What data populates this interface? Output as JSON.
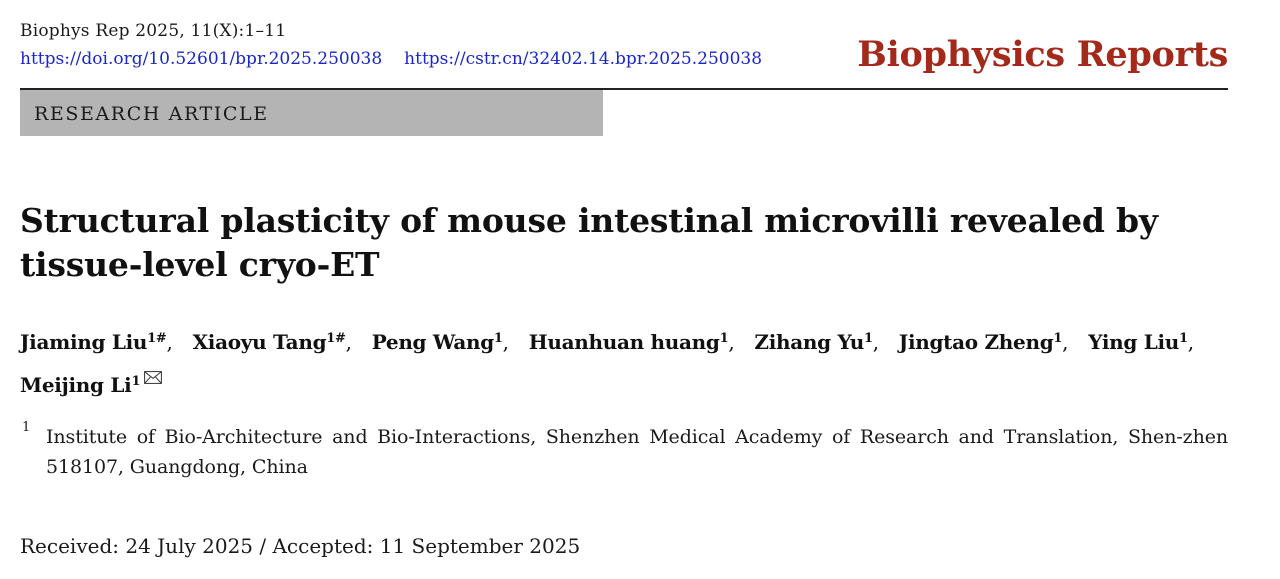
{
  "header": {
    "citation": "Biophys Rep 2025, 11(X):1–11",
    "doi_link": "https://doi.org/10.52601/bpr.2025.250038",
    "cstr_link": "https://cstr.cn/32402.14.bpr.2025.250038",
    "journal_name": "Biophysics Reports"
  },
  "article_type": "RESEARCH ARTICLE",
  "title": "Structural plasticity of mouse intestinal microvilli revealed by tissue-level cryo-ET",
  "authors": [
    {
      "name": "Jiaming Liu",
      "sup": "1#"
    },
    {
      "name": "Xiaoyu Tang",
      "sup": "1#"
    },
    {
      "name": "Peng Wang",
      "sup": "1"
    },
    {
      "name": "Huanhuan huang",
      "sup": "1"
    },
    {
      "name": "Zihang Yu",
      "sup": "1"
    },
    {
      "name": "Jingtao Zheng",
      "sup": "1"
    },
    {
      "name": "Ying Liu",
      "sup": "1"
    },
    {
      "name": "Meijing Li",
      "sup": "1"
    }
  ],
  "author_separator": ",",
  "affiliation": {
    "number": "1",
    "text": "Institute of Bio-Architecture and Bio-Interactions, Shenzhen Medical Academy of Research and Translation, Shen-zhen 518107, Guangdong, China"
  },
  "dates": "Received: 24 July 2025 / Accepted: 11 September 2025",
  "colors": {
    "journal_brand": "#a32a1a",
    "link": "#1a26c8",
    "type_band": "#b4b4b4"
  },
  "icons": {
    "corresponding_author": "envelope-icon"
  }
}
